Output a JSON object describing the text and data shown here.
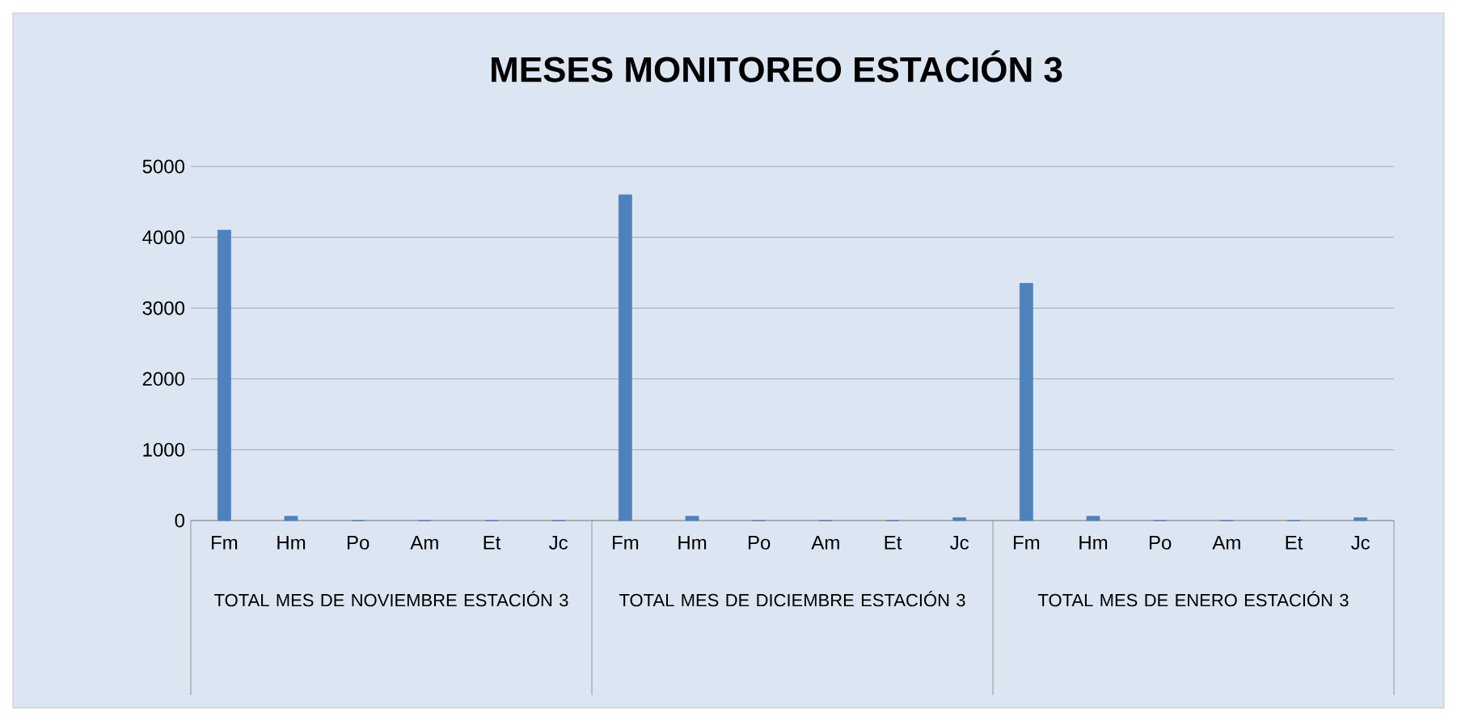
{
  "chart_data": {
    "type": "bar",
    "title": "MESES MONITOREO ESTACIÓN 3",
    "categories": [
      "Fm",
      "Hm",
      "Po",
      "Am",
      "Et",
      "Jc",
      "Fm",
      "Hm",
      "Po",
      "Am",
      "Et",
      "Jc",
      "Fm",
      "Hm",
      "Po",
      "Am",
      "Et",
      "Jc"
    ],
    "values": [
      4100,
      60,
      0,
      0,
      0,
      0,
      4600,
      60,
      0,
      0,
      0,
      40,
      3350,
      60,
      0,
      0,
      0,
      40
    ],
    "color": "#4f81bd",
    "ylim": [
      0,
      5000
    ],
    "yticks": [
      0,
      1000,
      2000,
      3000,
      4000,
      5000
    ],
    "grid": "y",
    "annotations": [
      "TOTAL MES DE NOVIEMBRE ESTACIÓN 3",
      "TOTAL MES DE DICIEMBRE ESTACIÓN 3",
      "TOTAL MES DE ENERO ESTACIÓN 3"
    ]
  }
}
